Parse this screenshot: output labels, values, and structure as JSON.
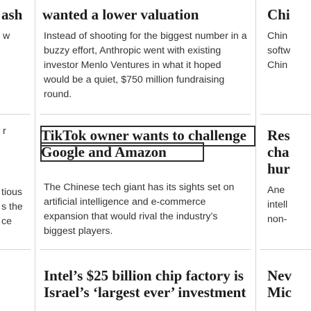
{
  "columns": {
    "left": {
      "cells": [
        {
          "headline": "ash",
          "dek": ""
        },
        {
          "headline": "",
          "dek": "w"
        },
        {
          "headline": "",
          "dek": "r"
        },
        {
          "headline": "",
          "dek_lines": [
            "tious",
            "s the",
            "ce"
          ]
        }
      ]
    },
    "center": {
      "cells": [
        {
          "headline": "wanted a lower valuation",
          "dek": ""
        },
        {
          "headline": "",
          "dek_lines": [
            "Instead of shooting for the biggest number in a",
            "buzzy effort, Anthropic went with existing",
            "investor Menlo Ventures in what it hoped",
            "would be a quiet, $750 million fundraising",
            "round."
          ]
        },
        {
          "headline_lines": [
            "TikTok owner wants to challenge",
            "Google and Amazon"
          ],
          "dek": ""
        },
        {
          "headline": "",
          "dek_lines": [
            "The Chinese tech giant has its sights set on",
            "artificial intelligence and e-commerce",
            "expansion that would rival the industry’s",
            "biggest players."
          ]
        },
        {
          "headline_lines": [
            "Intel’s $25 billion chip factory is",
            "Israel’s ‘largest ever’ investment"
          ]
        }
      ]
    },
    "right": {
      "cells": [
        {
          "headline": "Chi"
        },
        {
          "dek_lines": [
            "Chin",
            "softw",
            "Chin"
          ]
        },
        {
          "headline_lines": [
            "Res",
            "cha",
            "hur"
          ]
        },
        {
          "dek_lines": [
            "Ane",
            "intell",
            "non-"
          ]
        },
        {
          "headline_lines": [
            "Nev",
            "Mic"
          ]
        }
      ]
    }
  }
}
